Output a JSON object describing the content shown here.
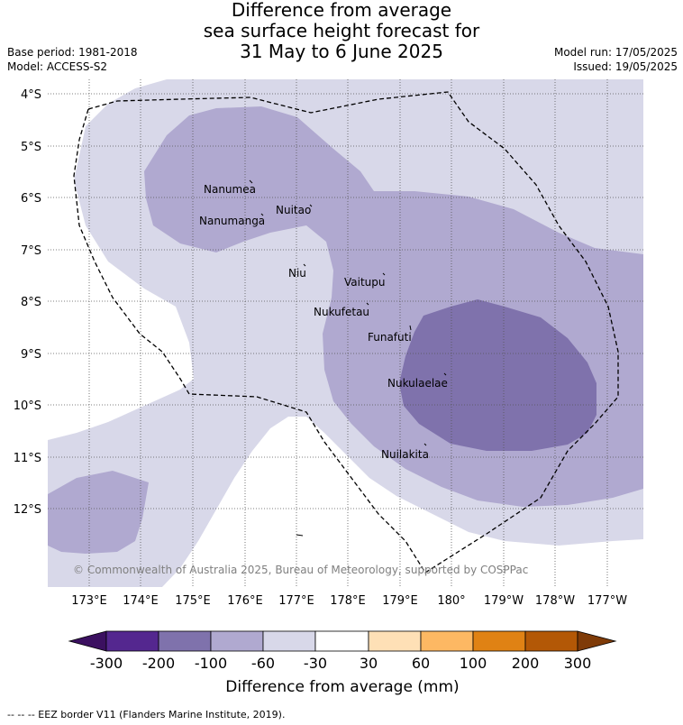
{
  "title": {
    "line1": "Difference from average",
    "line2": "sea surface height forecast for",
    "line3": "31 May to 6 June 2025"
  },
  "meta_left": {
    "base_period": "Base period: 1981-2018",
    "model": "Model: ACCESS-S2"
  },
  "meta_right": {
    "model_run": "Model run: 17/05/2025",
    "issued": "Issued: 19/05/2025"
  },
  "map": {
    "lat_labels": [
      "4°S",
      "5°S",
      "6°S",
      "7°S",
      "8°S",
      "9°S",
      "10°S",
      "11°S",
      "12°S"
    ],
    "lon_labels": [
      "173°E",
      "174°E",
      "175°E",
      "176°E",
      "177°E",
      "178°E",
      "179°E",
      "180°",
      "179°W",
      "178°W",
      "177°W"
    ],
    "places": [
      {
        "name": "Nanumea"
      },
      {
        "name": "Nuitao"
      },
      {
        "name": "Nanumanga"
      },
      {
        "name": "Niu"
      },
      {
        "name": "Vaitupu"
      },
      {
        "name": "Nukufetau"
      },
      {
        "name": "Funafuti"
      },
      {
        "name": "Nukulaelae"
      },
      {
        "name": "Nuilakita"
      }
    ],
    "copyright": "© Commonwealth of Australia 2025, Bureau of Meteorology, supported by COSPPac",
    "level_colors": {
      "-300_-200": "#54278f",
      "-200_-100": "#7f72ac",
      "-100_-60": "#b0a9d0",
      "-60_-30": "#d8d8e9",
      "-30_30": "#ffffff",
      "30_60": "#fee0b6",
      "60_100": "#fdb863",
      "100_200": "#e08214",
      "200_300": "#b35806"
    }
  },
  "colorbar": {
    "ticks": [
      "-300",
      "-200",
      "-100",
      "-60",
      "-30",
      "30",
      "60",
      "100",
      "200",
      "300"
    ],
    "colors": [
      "#54278f",
      "#7f72ac",
      "#b0a9d0",
      "#d8d8e9",
      "#ffffff",
      "#fee0b6",
      "#fdb863",
      "#e08214",
      "#b35806"
    ],
    "under_color": "#3b1060",
    "over_color": "#7f3b08",
    "label": "Difference from average (mm)"
  },
  "footnote": "-- -- -- EEZ border V11 (Flanders Marine Institute, 2019)."
}
